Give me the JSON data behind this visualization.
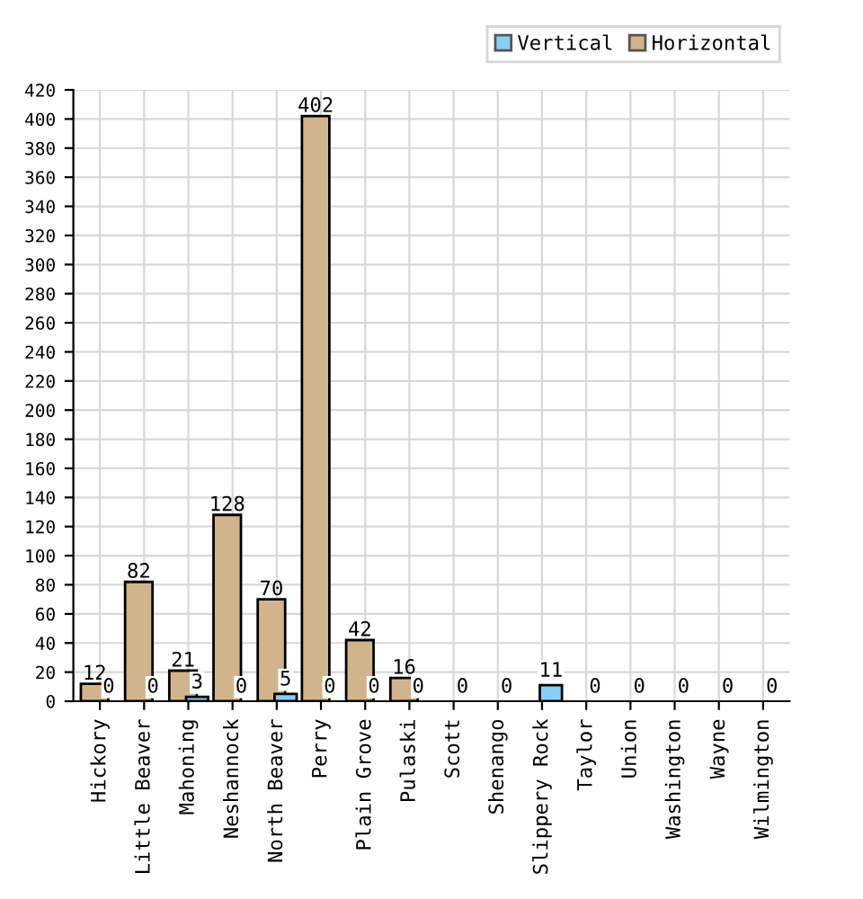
{
  "chart_data": {
    "type": "bar",
    "categories": [
      "Hickory",
      "Little Beaver",
      "Mahoning",
      "Neshannock",
      "North Beaver",
      "Perry",
      "Plain Grove",
      "Pulaski",
      "Scott",
      "Shenango",
      "Slippery Rock",
      "Taylor",
      "Union",
      "Washington",
      "Wayne",
      "Wilmington"
    ],
    "series": [
      {
        "name": "Horizontal",
        "color": "#d2b48c",
        "values": [
          12,
          82,
          21,
          128,
          70,
          402,
          42,
          16,
          0,
          0,
          0,
          0,
          0,
          0,
          0,
          0
        ],
        "value_labels": [
          "12",
          "82",
          "21",
          "128",
          "70",
          "402",
          "42",
          "16",
          null,
          null,
          null,
          null,
          null,
          null,
          null,
          null
        ]
      },
      {
        "name": "Vertical",
        "color": "#87cefa",
        "values": [
          0,
          0,
          3,
          0,
          5,
          0,
          0,
          0,
          0,
          0,
          11,
          0,
          0,
          0,
          0,
          0
        ],
        "value_labels": [
          "0",
          "0",
          "3",
          "0",
          "5",
          "0",
          "0",
          "0",
          "0",
          "0",
          "11",
          "0",
          "0",
          "0",
          "0",
          "0"
        ]
      }
    ],
    "ylim": [
      0,
      420
    ],
    "yticks": [
      0,
      20,
      40,
      60,
      80,
      100,
      120,
      140,
      160,
      180,
      200,
      220,
      240,
      260,
      280,
      300,
      320,
      340,
      360,
      380,
      400,
      420
    ],
    "grid": true,
    "legend": "top right"
  }
}
